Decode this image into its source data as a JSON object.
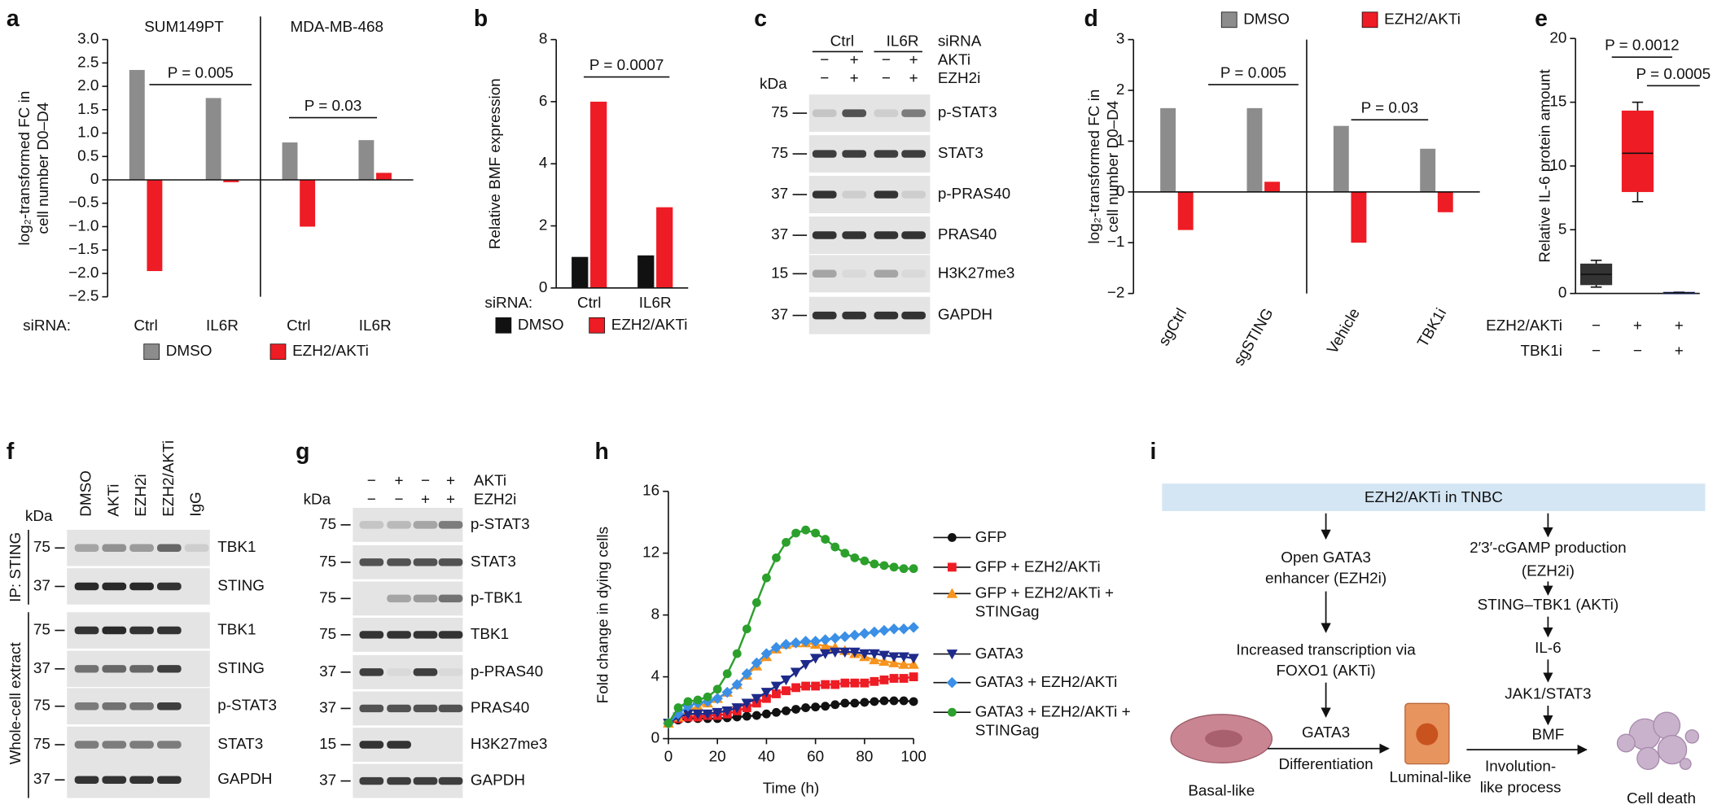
{
  "panel_labels": [
    "a",
    "b",
    "c",
    "d",
    "e",
    "f",
    "g",
    "h",
    "i"
  ],
  "chart_data": [
    {
      "type": "bar",
      "groups": [
        "SUM149PT",
        "MDA-MB-468"
      ],
      "categories": [
        "Ctrl",
        "IL6R",
        "Ctrl",
        "IL6R"
      ],
      "x_label": "siRNA:",
      "series": [
        {
          "name": "DMSO",
          "color": "#8c8c8c",
          "values": [
            2.35,
            1.75,
            0.8,
            0.85
          ]
        },
        {
          "name": "EZH2/AKTi",
          "color": "#ee1c24",
          "values": [
            -1.95,
            -0.05,
            -1.0,
            0.15
          ]
        }
      ],
      "ylabel": [
        "log₂-transformed FC in",
        "cell number D0–D4"
      ],
      "ylim": [
        -2.5,
        3.0
      ],
      "yticks": [
        {
          "value": 3,
          "label": "3.0"
        },
        2.5,
        {
          "value": 2,
          "label": "2.0"
        },
        1.5,
        {
          "value": 1,
          "label": "1.0"
        },
        0.5,
        0,
        {
          "value": -0.5,
          "label": "−0.5"
        },
        {
          "value": -1,
          "label": "−1.0"
        },
        {
          "value": -1.5,
          "label": "−1.5"
        },
        {
          "value": -2,
          "label": "−2.0"
        },
        {
          "value": -2.5,
          "label": "−2.5"
        }
      ],
      "annotations": [
        "P = 0.005",
        "P = 0.03"
      ],
      "legend": "bottom"
    },
    {
      "type": "bar",
      "categories": [
        "Ctrl",
        "IL6R"
      ],
      "x_label": "siRNA:",
      "series": [
        {
          "name": "DMSO",
          "color": "#111111",
          "values": [
            1.0,
            1.05
          ]
        },
        {
          "name": "EZH2/AKTi",
          "color": "#ee1c24",
          "values": [
            6.0,
            2.6
          ]
        }
      ],
      "ylabel": "Relative BMF expression",
      "ylim": [
        0,
        8
      ],
      "yticks": [
        0,
        2,
        4,
        6,
        8
      ],
      "annotations": [
        "P = 0.0007"
      ],
      "legend": "bottom"
    },
    {
      "type": "bar",
      "categories": [
        "sgCtrl",
        "sgSTING",
        "Vehicle",
        "TBK1i"
      ],
      "series": [
        {
          "name": "DMSO",
          "color": "#8c8c8c",
          "values": [
            1.65,
            1.65,
            1.3,
            0.85
          ]
        },
        {
          "name": "EZH2/AKTi",
          "color": "#ee1c24",
          "values": [
            -0.75,
            0.2,
            -1.0,
            -0.4
          ]
        }
      ],
      "ylabel": [
        "log₂-transformed FC in",
        "cell number D0–D4"
      ],
      "ylim": [
        -2,
        3
      ],
      "yticks": [
        3,
        2,
        1,
        0,
        {
          "value": -1,
          "label": "−1"
        },
        {
          "value": -2,
          "label": "−2"
        }
      ],
      "annotations": [
        "P = 0.005",
        "P = 0.03"
      ],
      "legend": "top"
    },
    {
      "type": "box",
      "ylabel": "Relative IL-6 protein amount",
      "ylim": [
        0,
        20
      ],
      "yticks": [
        0,
        5,
        10,
        15,
        20
      ],
      "boxes": [
        {
          "min": 0.5,
          "q1": 0.7,
          "median": 1.5,
          "q3": 2.3,
          "max": 2.6,
          "color": "#333333"
        },
        {
          "min": 7.2,
          "q1": 8.0,
          "median": 11,
          "q3": 14.3,
          "max": 15,
          "color": "#ee1c24"
        },
        {
          "min": 0,
          "q1": 0.02,
          "median": 0.05,
          "q3": 0.08,
          "max": 0.1,
          "color": "#2b3990"
        }
      ],
      "condition_rows": [
        {
          "name": "EZH2/AKTi",
          "signs": [
            "−",
            "+",
            "+"
          ]
        },
        {
          "name": "TBK1i",
          "signs": [
            "−",
            "−",
            "+"
          ]
        }
      ],
      "annotations": [
        "P = 0.0012",
        "P = 0.0005"
      ]
    },
    {
      "type": "line",
      "xlabel": "Time (h)",
      "ylabel": "Fold change in dying cells",
      "xlim": [
        0,
        100
      ],
      "xticks": [
        0,
        20,
        40,
        60,
        80,
        100
      ],
      "ylim": [
        0,
        16
      ],
      "yticks": [
        0,
        4,
        8,
        12,
        16
      ],
      "legend": "right",
      "x": [
        0,
        4,
        8,
        12,
        16,
        20,
        24,
        28,
        32,
        36,
        40,
        44,
        48,
        52,
        56,
        60,
        64,
        68,
        72,
        76,
        80,
        84,
        88,
        92,
        96,
        100
      ],
      "series": [
        {
          "name": "GFP",
          "color": "#111111",
          "marker": "circle",
          "values": [
            1.0,
            1.2,
            1.3,
            1.3,
            1.3,
            1.3,
            1.35,
            1.4,
            1.45,
            1.5,
            1.6,
            1.7,
            1.8,
            1.9,
            2.0,
            2.05,
            2.1,
            2.2,
            2.3,
            2.3,
            2.35,
            2.4,
            2.45,
            2.45,
            2.45,
            2.4
          ]
        },
        {
          "name": "GFP + EZH2/AKTi",
          "color": "#ee1c24",
          "marker": "square",
          "values": [
            1.0,
            1.3,
            1.4,
            1.4,
            1.5,
            1.5,
            1.6,
            1.8,
            2.0,
            2.3,
            2.6,
            2.9,
            3.1,
            3.3,
            3.4,
            3.4,
            3.5,
            3.5,
            3.6,
            3.6,
            3.6,
            3.7,
            3.8,
            3.9,
            3.9,
            4.0
          ]
        },
        {
          "name": "GFP + EZH2/AKTi + STINGag",
          "color": "#f7941d",
          "marker": "triangle",
          "values": [
            1.0,
            1.4,
            1.8,
            2.1,
            2.3,
            2.6,
            3.0,
            3.5,
            4.1,
            4.7,
            5.3,
            5.8,
            6.1,
            6.2,
            6.2,
            6.1,
            6.0,
            5.9,
            5.7,
            5.5,
            5.3,
            5.1,
            5.0,
            4.9,
            4.8,
            4.8
          ]
        },
        {
          "name": "GATA3",
          "color": "#1e2a8a",
          "marker": "triangle-down",
          "values": [
            1.0,
            1.4,
            1.6,
            1.6,
            1.6,
            1.7,
            1.8,
            2.0,
            2.3,
            2.6,
            3.0,
            3.4,
            3.8,
            4.3,
            4.8,
            5.2,
            5.5,
            5.6,
            5.6,
            5.6,
            5.5,
            5.5,
            5.4,
            5.3,
            5.3,
            5.2
          ]
        },
        {
          "name": "GATA3 + EZH2/AKTi",
          "color": "#3b8fe6",
          "marker": "diamond",
          "values": [
            1.0,
            1.6,
            2.1,
            2.3,
            2.4,
            2.6,
            3.0,
            3.5,
            4.2,
            4.9,
            5.5,
            5.9,
            6.1,
            6.2,
            6.3,
            6.3,
            6.4,
            6.5,
            6.6,
            6.7,
            6.8,
            6.9,
            7.0,
            7.1,
            7.1,
            7.2
          ]
        },
        {
          "name": "GATA3 + EZH2/AKTi + STINGag",
          "color": "#2ca02c",
          "marker": "circle",
          "values": [
            1.0,
            2.0,
            2.4,
            2.5,
            2.7,
            3.2,
            4.2,
            5.5,
            7.1,
            8.8,
            10.4,
            11.7,
            12.7,
            13.3,
            13.5,
            13.3,
            12.9,
            12.4,
            12.0,
            11.7,
            11.5,
            11.3,
            11.2,
            11.1,
            11.0,
            11.0
          ]
        }
      ]
    }
  ],
  "blots": {
    "c": {
      "kda_title": "kDa",
      "lane_group_title": "siRNA",
      "lane_groups": [
        "Ctrl",
        "IL6R"
      ],
      "treatments": [
        {
          "name": "AKTi",
          "signs": [
            "−",
            "+",
            "−",
            "+"
          ]
        },
        {
          "name": "EZH2i",
          "signs": [
            "−",
            "+",
            "−",
            "+"
          ]
        }
      ],
      "rows": [
        {
          "kda": "75",
          "protein": "p-STAT3"
        },
        {
          "kda": "75",
          "protein": "STAT3"
        },
        {
          "kda": "37",
          "protein": "p-PRAS40"
        },
        {
          "kda": "37",
          "protein": "PRAS40"
        },
        {
          "kda": "15",
          "protein": "H3K27me3"
        },
        {
          "kda": "37",
          "protein": "GAPDH"
        }
      ]
    },
    "f": {
      "kda_title": "kDa",
      "lanes": [
        "DMSO",
        "AKTi",
        "EZH2i",
        "EZH2/AKTi",
        "IgG"
      ],
      "sections": [
        "IP: STING",
        "Whole-cell extract"
      ],
      "rows": [
        {
          "kda": "75",
          "protein": "TBK1"
        },
        {
          "kda": "37",
          "protein": "STING"
        },
        {
          "kda": "75",
          "protein": "TBK1"
        },
        {
          "kda": "37",
          "protein": "STING"
        },
        {
          "kda": "75",
          "protein": "p-STAT3"
        },
        {
          "kda": "75",
          "protein": "STAT3"
        },
        {
          "kda": "37",
          "protein": "GAPDH"
        }
      ]
    },
    "g": {
      "kda_title": "kDa",
      "treatments": [
        {
          "name": "AKTi",
          "signs": [
            "−",
            "+",
            "−",
            "+"
          ]
        },
        {
          "name": "EZH2i",
          "signs": [
            "−",
            "−",
            "+",
            "+"
          ]
        }
      ],
      "rows": [
        {
          "kda": "75",
          "protein": "p-STAT3"
        },
        {
          "kda": "75",
          "protein": "STAT3"
        },
        {
          "kda": "75",
          "protein": "p-TBK1"
        },
        {
          "kda": "75",
          "protein": "TBK1"
        },
        {
          "kda": "37",
          "protein": "p-PRAS40"
        },
        {
          "kda": "37",
          "protein": "PRAS40"
        },
        {
          "kda": "15",
          "protein": "H3K27me3"
        },
        {
          "kda": "37",
          "protein": "GAPDH"
        }
      ]
    }
  },
  "diagram": {
    "title": "EZH2/AKTi in TNBC",
    "texts": [
      "Open GATA3",
      "enhancer (EZH2i)",
      "Increased transcription via",
      "FOXO1 (AKTi)",
      "GATA3",
      "Differentiation",
      "Basal-like",
      "Luminal-like",
      "2′3′-cGAMP production",
      "(EZH2i)",
      "STING–TBK1 (AKTi)",
      "IL-6",
      "JAK1/STAT3",
      "BMF",
      "Involution-",
      "like process",
      "Cell death"
    ]
  }
}
